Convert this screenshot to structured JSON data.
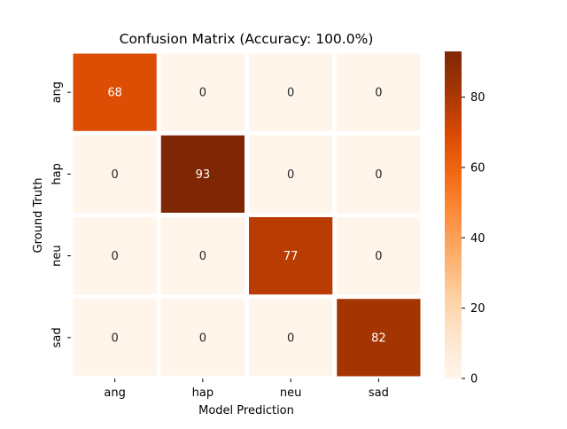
{
  "chart_data": {
    "type": "heatmap",
    "title": "Confusion Matrix (Accuracy: 100.0%)",
    "xlabel": "Model Prediction",
    "ylabel": "Ground Truth",
    "x_categories": [
      "ang",
      "hap",
      "neu",
      "sad"
    ],
    "y_categories": [
      "ang",
      "hap",
      "neu",
      "sad"
    ],
    "values": [
      [
        68,
        0,
        0,
        0
      ],
      [
        0,
        93,
        0,
        0
      ],
      [
        0,
        0,
        77,
        0
      ],
      [
        0,
        0,
        0,
        82
      ]
    ],
    "colorbar": {
      "min": 0,
      "max": 93,
      "ticks": [
        "0",
        "20",
        "40",
        "60",
        "80"
      ],
      "tick_values": [
        0,
        20,
        40,
        60,
        80
      ]
    },
    "colormap": "Oranges",
    "colormap_stops": [
      "#fff5eb",
      "#fee6ce",
      "#fdd0a2",
      "#fdae6b",
      "#fd8d3c",
      "#f16913",
      "#d94801",
      "#a63603",
      "#7f2704"
    ],
    "grid_color": "#ffffff",
    "text_dark": "#262626",
    "text_light": "#ffffff"
  }
}
